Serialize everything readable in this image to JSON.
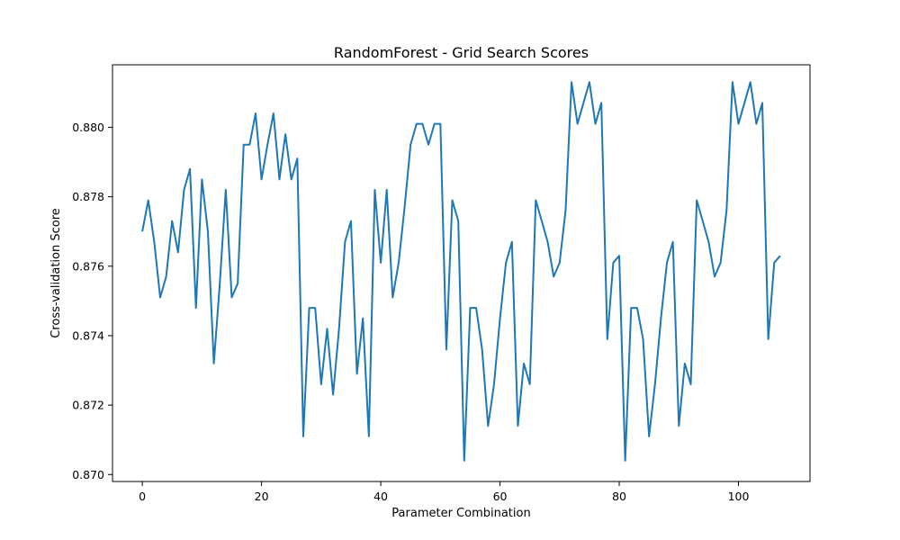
{
  "chart_data": {
    "type": "line",
    "title": "RandomForest - Grid Search Scores",
    "xlabel": "Parameter Combination",
    "ylabel": "Cross-validation Score",
    "xlim": [
      -5,
      112
    ],
    "ylim": [
      0.8698,
      0.8818
    ],
    "xticks": [
      0,
      20,
      40,
      60,
      80,
      100
    ],
    "xtick_labels": [
      "0",
      "20",
      "40",
      "60",
      "80",
      "100"
    ],
    "yticks": [
      0.87,
      0.872,
      0.874,
      0.876,
      0.878,
      0.88
    ],
    "ytick_labels": [
      "0.870",
      "0.872",
      "0.874",
      "0.876",
      "0.878",
      "0.880"
    ],
    "grid": false,
    "series": [
      {
        "color": "#1f77b4",
        "x": [
          0,
          1,
          2,
          3,
          4,
          5,
          6,
          7,
          8,
          9,
          10,
          11,
          12,
          13,
          14,
          15,
          16,
          17,
          18,
          19,
          20,
          21,
          22,
          23,
          24,
          25,
          26,
          27,
          28,
          29,
          30,
          31,
          32,
          33,
          34,
          35,
          36,
          37,
          38,
          39,
          40,
          41,
          42,
          43,
          44,
          45,
          46,
          47,
          48,
          49,
          50,
          51,
          52,
          53,
          54,
          55,
          56,
          57,
          58,
          59,
          60,
          61,
          62,
          63,
          64,
          65,
          66,
          67,
          68,
          69,
          70,
          71,
          72,
          73,
          74,
          75,
          76,
          77,
          78,
          79,
          80,
          81,
          82,
          83,
          84,
          85,
          86,
          87,
          88,
          89,
          90,
          91,
          92,
          93,
          94,
          95,
          96,
          97,
          98,
          99,
          100,
          101,
          102,
          103,
          104,
          105,
          106,
          107
        ],
        "y": [
          0.877,
          0.8779,
          0.8767,
          0.8751,
          0.8757,
          0.8773,
          0.8764,
          0.8782,
          0.8788,
          0.8748,
          0.8785,
          0.877,
          0.8732,
          0.8755,
          0.8782,
          0.8751,
          0.8755,
          0.8795,
          0.8795,
          0.8804,
          0.8785,
          0.8795,
          0.8804,
          0.8785,
          0.8798,
          0.8785,
          0.8791,
          0.8711,
          0.8748,
          0.8748,
          0.8726,
          0.8742,
          0.8723,
          0.8742,
          0.8767,
          0.8773,
          0.8729,
          0.8745,
          0.8711,
          0.8782,
          0.8761,
          0.8782,
          0.8751,
          0.8761,
          0.8777,
          0.8795,
          0.8801,
          0.8801,
          0.8795,
          0.8801,
          0.8801,
          0.8736,
          0.8779,
          0.8773,
          0.8704,
          0.8748,
          0.8748,
          0.8736,
          0.8714,
          0.8726,
          0.8745,
          0.8761,
          0.8767,
          0.8714,
          0.8732,
          0.8726,
          0.8779,
          0.8773,
          0.8767,
          0.8757,
          0.8761,
          0.8776,
          0.8813,
          0.8801,
          0.8807,
          0.8813,
          0.8801,
          0.8807,
          0.8739,
          0.8761,
          0.8763,
          0.8704,
          0.8748,
          0.8748,
          0.8739,
          0.8711,
          0.8726,
          0.8745,
          0.8761,
          0.8767,
          0.8714,
          0.8732,
          0.8726,
          0.8779,
          0.8773,
          0.8767,
          0.8757,
          0.8761,
          0.8776,
          0.8813,
          0.8801,
          0.8807,
          0.8813,
          0.8801,
          0.8807,
          0.8739,
          0.8761,
          0.8763
        ]
      }
    ]
  }
}
